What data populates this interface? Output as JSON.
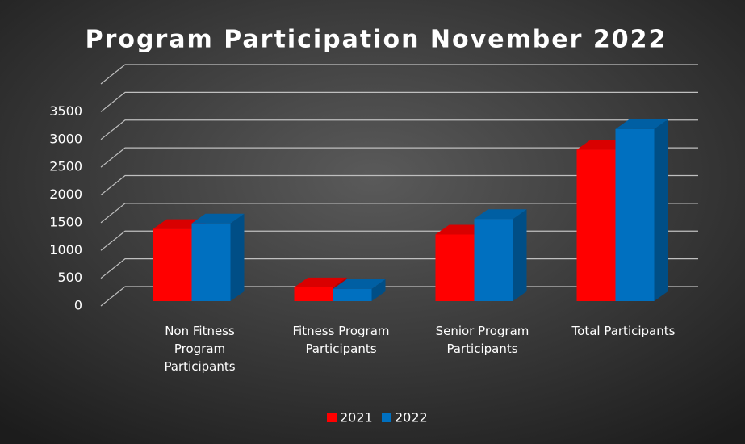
{
  "chart_data": {
    "type": "bar3d",
    "title": "Program Participation November 2022",
    "categories": [
      "Non Fitness Program Participants",
      "Fitness Program Participants",
      "Senior Program Participants",
      "Total Participants"
    ],
    "series": [
      {
        "name": "2021",
        "color": "#ff0000",
        "values": [
          1300,
          250,
          1200,
          2730
        ]
      },
      {
        "name": "2022",
        "color": "#0070c0",
        "values": [
          1400,
          220,
          1480,
          3100
        ]
      }
    ],
    "ylim": [
      0,
      4000
    ],
    "yticks": [
      0,
      500,
      1000,
      1500,
      2000,
      2500,
      3000,
      3500
    ],
    "grid": true,
    "legend": "bottom"
  }
}
